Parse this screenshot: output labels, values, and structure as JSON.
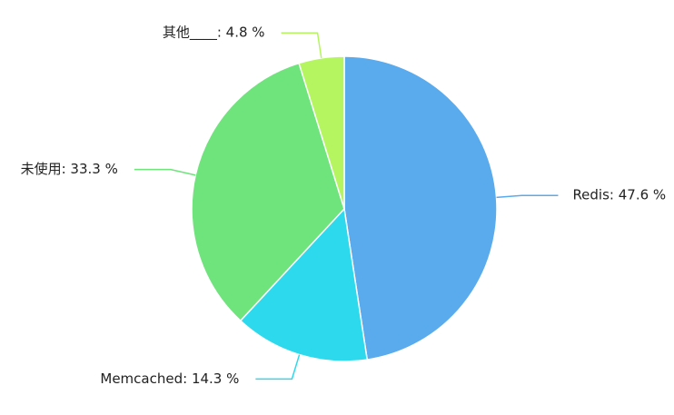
{
  "chart_data": {
    "type": "pie",
    "values": [
      47.6,
      14.3,
      33.3,
      4.8
    ],
    "value_labels": [
      "Redis: 47.6 %",
      "Memcached: 14.3 %",
      "未使用: 33.3 %",
      "其他____: 4.8 %"
    ],
    "colors": [
      "#5aaaee",
      "#2dd9ec",
      "#6fe37c",
      "#b5f55f"
    ]
  }
}
